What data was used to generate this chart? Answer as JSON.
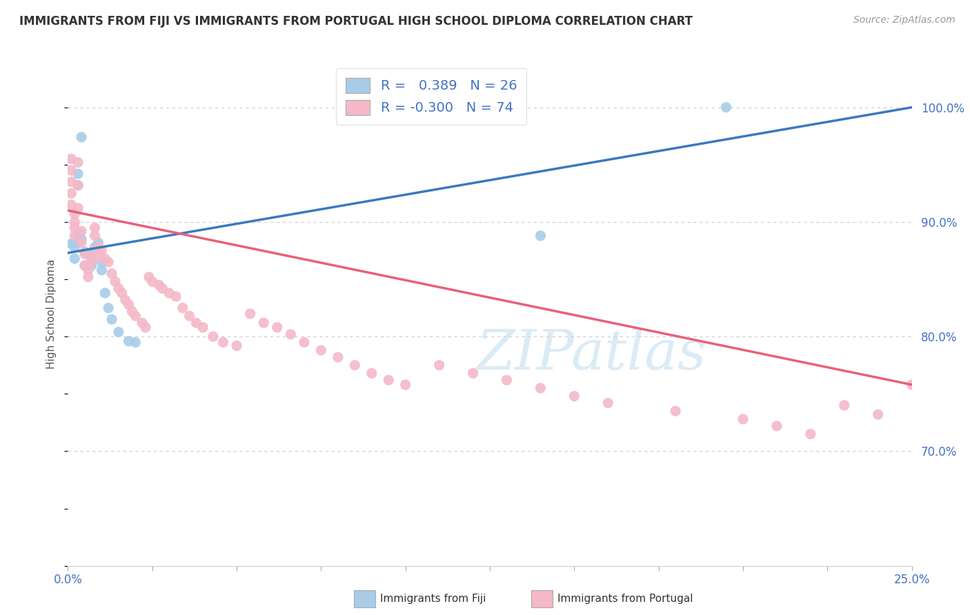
{
  "title": "IMMIGRANTS FROM FIJI VS IMMIGRANTS FROM PORTUGAL HIGH SCHOOL DIPLOMA CORRELATION CHART",
  "source": "Source: ZipAtlas.com",
  "ylabel": "High School Diploma",
  "fiji_color": "#a8cce8",
  "portugal_color": "#f4b8c8",
  "fiji_line_color": "#3a7abf",
  "portugal_line_color": "#e8607a",
  "background_color": "#ffffff",
  "grid_color": "#cccccc",
  "legend_fiji_r": "0.389",
  "legend_fiji_n": "26",
  "legend_port_r": "-0.300",
  "legend_port_n": "74",
  "xmin": 0.0,
  "xmax": 0.25,
  "ymin": 0.6,
  "ymax": 1.04,
  "yticks": [
    0.7,
    0.8,
    0.9,
    1.0
  ],
  "ytick_labels": [
    "70.0%",
    "80.0%",
    "90.0%",
    "100.0%"
  ],
  "fiji_x": [
    0.001,
    0.002,
    0.002,
    0.002,
    0.003,
    0.003,
    0.003,
    0.004,
    0.004,
    0.005,
    0.005,
    0.006,
    0.007,
    0.007,
    0.008,
    0.009,
    0.01,
    0.01,
    0.011,
    0.012,
    0.013,
    0.015,
    0.018,
    0.02,
    0.14,
    0.195
  ],
  "fiji_y": [
    0.881,
    0.878,
    0.882,
    0.868,
    0.942,
    0.932,
    0.89,
    0.974,
    0.885,
    0.874,
    0.862,
    0.872,
    0.868,
    0.862,
    0.878,
    0.882,
    0.865,
    0.858,
    0.838,
    0.825,
    0.815,
    0.804,
    0.796,
    0.795,
    0.888,
    1.0
  ],
  "port_x": [
    0.001,
    0.001,
    0.001,
    0.001,
    0.001,
    0.002,
    0.002,
    0.002,
    0.002,
    0.003,
    0.003,
    0.003,
    0.004,
    0.004,
    0.005,
    0.005,
    0.006,
    0.006,
    0.007,
    0.007,
    0.008,
    0.008,
    0.009,
    0.009,
    0.01,
    0.011,
    0.012,
    0.013,
    0.014,
    0.015,
    0.016,
    0.017,
    0.018,
    0.019,
    0.02,
    0.022,
    0.023,
    0.024,
    0.025,
    0.027,
    0.028,
    0.03,
    0.032,
    0.034,
    0.036,
    0.038,
    0.04,
    0.043,
    0.046,
    0.05,
    0.054,
    0.058,
    0.062,
    0.066,
    0.07,
    0.075,
    0.08,
    0.085,
    0.09,
    0.095,
    0.1,
    0.11,
    0.12,
    0.13,
    0.14,
    0.15,
    0.16,
    0.18,
    0.2,
    0.21,
    0.22,
    0.23,
    0.24,
    0.25
  ],
  "port_y": [
    0.955,
    0.945,
    0.935,
    0.925,
    0.915,
    0.907,
    0.9,
    0.895,
    0.888,
    0.952,
    0.932,
    0.912,
    0.892,
    0.882,
    0.872,
    0.862,
    0.858,
    0.852,
    0.87,
    0.865,
    0.895,
    0.888,
    0.878,
    0.87,
    0.875,
    0.868,
    0.865,
    0.855,
    0.848,
    0.842,
    0.838,
    0.832,
    0.828,
    0.822,
    0.818,
    0.812,
    0.808,
    0.852,
    0.848,
    0.845,
    0.842,
    0.838,
    0.835,
    0.825,
    0.818,
    0.812,
    0.808,
    0.8,
    0.795,
    0.792,
    0.82,
    0.812,
    0.808,
    0.802,
    0.795,
    0.788,
    0.782,
    0.775,
    0.768,
    0.762,
    0.758,
    0.775,
    0.768,
    0.762,
    0.755,
    0.748,
    0.742,
    0.735,
    0.728,
    0.722,
    0.715,
    0.74,
    0.732,
    0.758
  ]
}
